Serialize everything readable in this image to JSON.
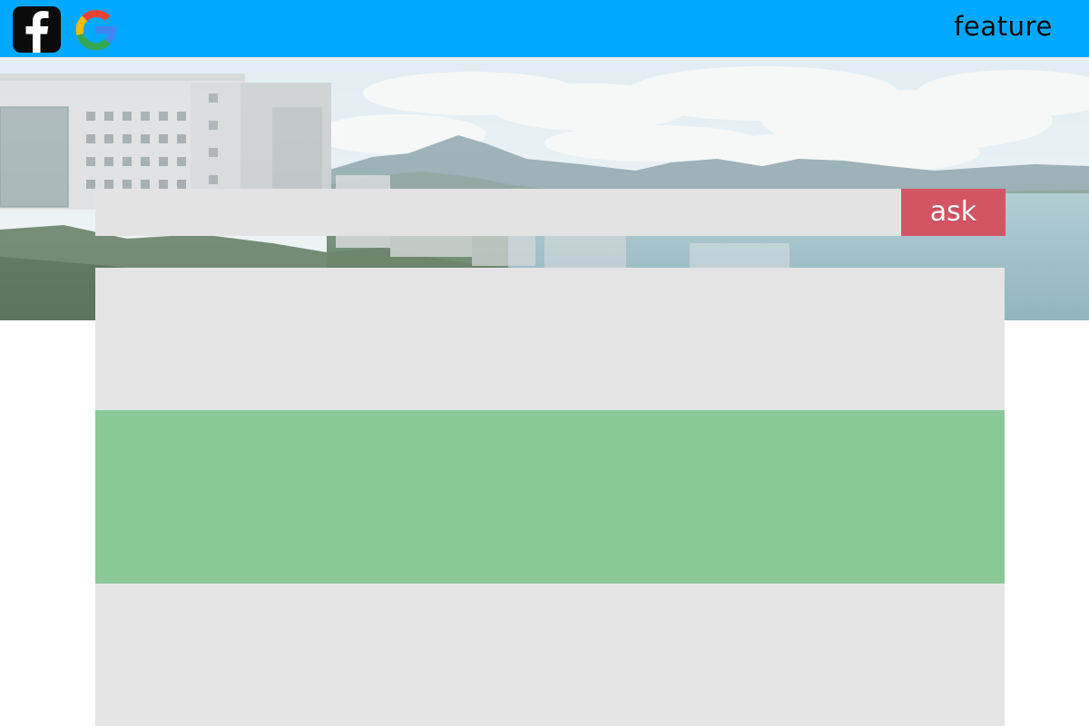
{
  "header": {
    "nav_label": "feature",
    "background_color": "#00a8ff"
  },
  "social": {
    "facebook_icon": "facebook-icon",
    "google_icon": "google-icon"
  },
  "hero": {
    "image": "campus-buildings-mountains-bay-photo"
  },
  "search": {
    "value": "",
    "placeholder": "",
    "button_label": "ask",
    "button_color": "#d35463",
    "input_color": "#e3e3e3"
  },
  "panels": {
    "top_color": "#e4e4e4",
    "middle_color": "#8ac898",
    "bottom_color": "#e4e4e4"
  }
}
